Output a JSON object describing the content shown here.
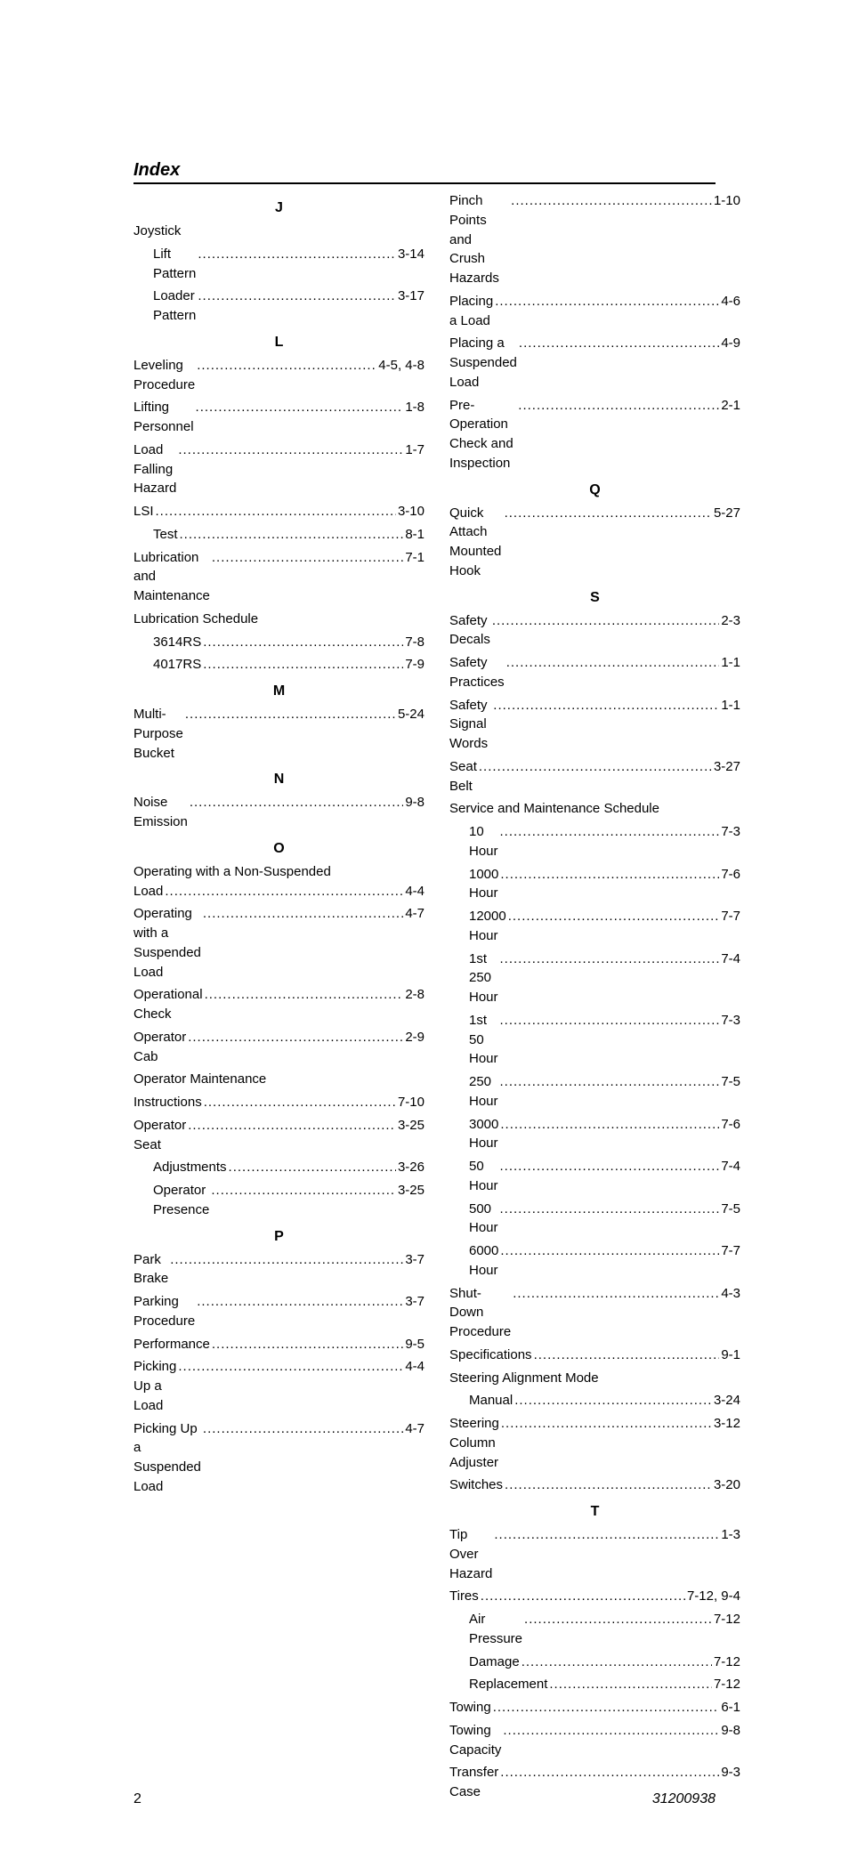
{
  "title": "Index",
  "footer": {
    "page": "2",
    "docnum": "31200938"
  },
  "left": [
    {
      "type": "letter",
      "text": "J"
    },
    {
      "type": "header",
      "text": "Joystick"
    },
    {
      "type": "sub",
      "label": "Lift Pattern",
      "page": "3-14"
    },
    {
      "type": "sub",
      "label": "Loader Pattern",
      "page": "3-17"
    },
    {
      "type": "letter",
      "text": "L"
    },
    {
      "type": "entry",
      "label": "Leveling Procedure",
      "page": "4-5, 4-8"
    },
    {
      "type": "entry",
      "label": "Lifting Personnel",
      "page": "1-8"
    },
    {
      "type": "entry",
      "label": "Load Falling Hazard",
      "page": "1-7"
    },
    {
      "type": "entry",
      "label": "LSI",
      "page": "3-10"
    },
    {
      "type": "sub",
      "label": "Test",
      "page": "8-1"
    },
    {
      "type": "entry",
      "label": "Lubrication and Maintenance",
      "page": "7-1"
    },
    {
      "type": "header",
      "text": "Lubrication Schedule"
    },
    {
      "type": "sub",
      "label": "3614RS",
      "page": "7-8"
    },
    {
      "type": "sub",
      "label": "4017RS",
      "page": "7-9"
    },
    {
      "type": "letter",
      "text": "M"
    },
    {
      "type": "entry",
      "label": "Multi-Purpose Bucket",
      "page": "5-24"
    },
    {
      "type": "letter",
      "text": "N"
    },
    {
      "type": "entry",
      "label": "Noise Emission",
      "page": "9-8"
    },
    {
      "type": "letter",
      "text": "O"
    },
    {
      "type": "wrap",
      "line1": "Operating with a Non-Suspended",
      "line2label": "Load",
      "page": "4-4"
    },
    {
      "type": "entry",
      "label": "Operating with a Suspended Load",
      "page": "4-7"
    },
    {
      "type": "entry",
      "label": "Operational Check",
      "page": "2-8"
    },
    {
      "type": "entry",
      "label": "Operator Cab",
      "page": "2-9"
    },
    {
      "type": "header",
      "text": "Operator Maintenance"
    },
    {
      "type": "entry",
      "label": "Instructions",
      "page": "7-10"
    },
    {
      "type": "entry",
      "label": "Operator Seat",
      "page": "3-25"
    },
    {
      "type": "sub",
      "label": "Adjustments",
      "page": "3-26"
    },
    {
      "type": "sub",
      "label": "Operator Presence",
      "page": "3-25"
    },
    {
      "type": "letter",
      "text": "P"
    },
    {
      "type": "entry",
      "label": "Park Brake",
      "page": "3-7"
    },
    {
      "type": "entry",
      "label": "Parking Procedure",
      "page": "3-7"
    },
    {
      "type": "entry",
      "label": "Performance",
      "page": "9-5"
    },
    {
      "type": "entry",
      "label": "Picking Up a Load",
      "page": "4-4"
    },
    {
      "type": "entry",
      "label": "Picking Up a Suspended Load",
      "page": "4-7"
    }
  ],
  "right": [
    {
      "type": "entry",
      "label": "Pinch Points and Crush Hazards",
      "page": "1-10"
    },
    {
      "type": "entry",
      "label": "Placing a Load",
      "page": "4-6"
    },
    {
      "type": "entry",
      "label": "Placing a Suspended Load",
      "page": "4-9"
    },
    {
      "type": "entry",
      "label": "Pre-Operation Check and Inspection",
      "page": "2-1"
    },
    {
      "type": "letter",
      "text": "Q"
    },
    {
      "type": "entry",
      "label": "Quick Attach Mounted Hook",
      "page": "5-27"
    },
    {
      "type": "letter",
      "text": "S"
    },
    {
      "type": "entry",
      "label": "Safety Decals",
      "page": "2-3"
    },
    {
      "type": "entry",
      "label": "Safety Practices",
      "page": "1-1"
    },
    {
      "type": "entry",
      "label": "Safety Signal Words",
      "page": "1-1"
    },
    {
      "type": "entry",
      "label": "Seat Belt",
      "page": "3-27"
    },
    {
      "type": "header",
      "text": "Service and Maintenance Schedule"
    },
    {
      "type": "sub",
      "label": "10 Hour",
      "page": "7-3"
    },
    {
      "type": "sub",
      "label": "1000 Hour",
      "page": "7-6"
    },
    {
      "type": "sub",
      "label": "12000 Hour",
      "page": "7-7"
    },
    {
      "type": "sub",
      "label": "1st 250 Hour",
      "page": "7-4"
    },
    {
      "type": "sub",
      "label": "1st 50 Hour",
      "page": "7-3"
    },
    {
      "type": "sub",
      "label": "250 Hour",
      "page": "7-5"
    },
    {
      "type": "sub",
      "label": "3000 Hour",
      "page": "7-6"
    },
    {
      "type": "sub",
      "label": "50 Hour",
      "page": "7-4"
    },
    {
      "type": "sub",
      "label": "500 Hour",
      "page": "7-5"
    },
    {
      "type": "sub",
      "label": "6000 Hour",
      "page": "7-7"
    },
    {
      "type": "entry",
      "label": "Shut-Down Procedure",
      "page": "4-3"
    },
    {
      "type": "entry",
      "label": "Specifications",
      "page": "9-1"
    },
    {
      "type": "header",
      "text": "Steering Alignment Mode"
    },
    {
      "type": "sub",
      "label": "Manual",
      "page": "3-24"
    },
    {
      "type": "entry",
      "label": "Steering Column Adjuster",
      "page": "3-12"
    },
    {
      "type": "entry",
      "label": "Switches",
      "page": "3-20"
    },
    {
      "type": "letter",
      "text": "T"
    },
    {
      "type": "entry",
      "label": "Tip Over Hazard",
      "page": "1-3"
    },
    {
      "type": "entry",
      "label": "Tires",
      "page": "7-12, 9-4"
    },
    {
      "type": "sub",
      "label": "Air Pressure",
      "page": "7-12"
    },
    {
      "type": "sub",
      "label": "Damage",
      "page": "7-12"
    },
    {
      "type": "sub",
      "label": "Replacement",
      "page": "7-12"
    },
    {
      "type": "entry",
      "label": "Towing",
      "page": "6-1"
    },
    {
      "type": "entry",
      "label": "Towing Capacity",
      "page": "9-8"
    },
    {
      "type": "entry",
      "label": "Transfer Case",
      "page": "9-3"
    }
  ]
}
